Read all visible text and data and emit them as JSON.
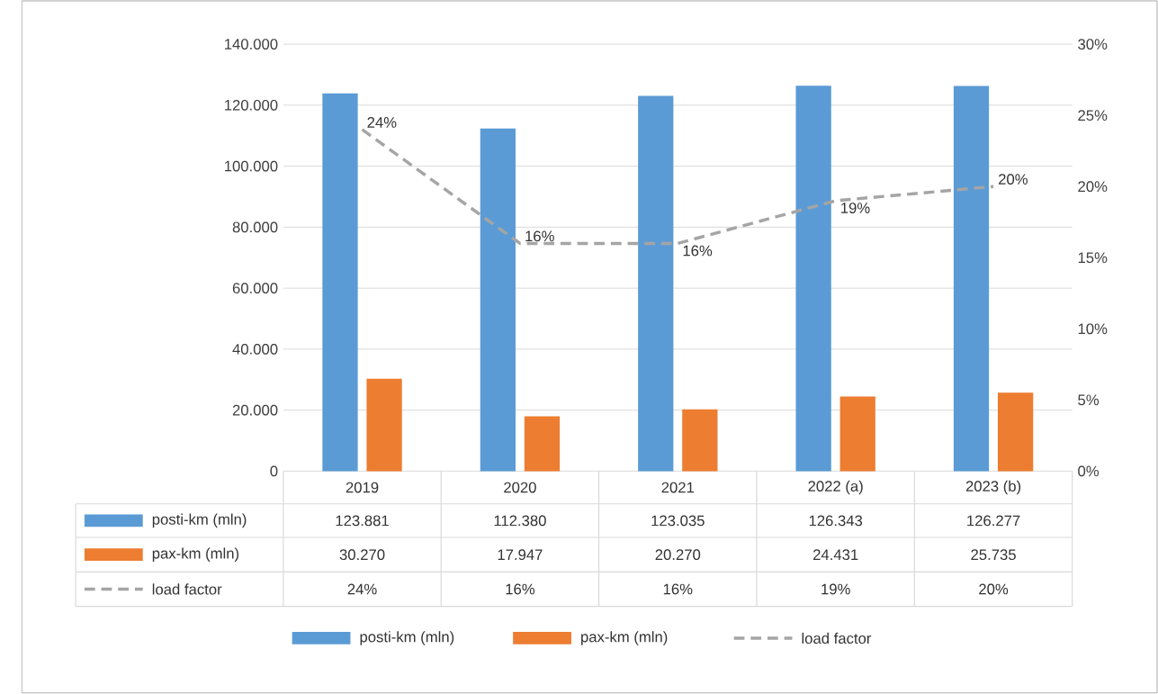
{
  "chart_data": {
    "type": "bar",
    "categories": [
      "2019",
      "2020",
      "2021",
      "2022 (a)",
      "2023 (b)"
    ],
    "series": [
      {
        "name": "posti-km (mln)",
        "color": "#5b9bd5",
        "values": [
          123881,
          112380,
          123035,
          126343,
          126277
        ],
        "value_labels": [
          "123.881",
          "112.380",
          "123.035",
          "126.343",
          "126.277"
        ]
      },
      {
        "name": "pax-km (mln)",
        "color": "#ed7d31",
        "values": [
          30270,
          17947,
          20270,
          24431,
          25735
        ],
        "value_labels": [
          "30.270",
          "17.947",
          "20.270",
          "24.431",
          "25.735"
        ]
      },
      {
        "name": "load factor",
        "type": "line",
        "axis": "y2",
        "color": "#a5a5a5",
        "line_style": "dashed",
        "marker": "none",
        "values": [
          24,
          16,
          16,
          19,
          20
        ],
        "value_labels": [
          "24%",
          "16%",
          "16%",
          "19%",
          "20%"
        ]
      }
    ],
    "ylim": [
      0,
      140000
    ],
    "yticks": [
      0,
      {
        "value": 20000,
        "label": "20.000"
      },
      {
        "value": 40000,
        "label": "40.000"
      },
      {
        "value": 60000,
        "label": "60.000"
      },
      {
        "value": 80000,
        "label": "80.000"
      },
      {
        "value": 100000,
        "label": "100.000"
      },
      {
        "value": 120000,
        "label": "120.000"
      },
      {
        "value": 140000,
        "label": "140.000"
      }
    ],
    "y2lim": [
      0,
      30
    ],
    "y2ticks": [
      {
        "value": 0,
        "label": "0%"
      },
      {
        "value": 5,
        "label": "5%"
      },
      {
        "value": 10,
        "label": "10%"
      },
      {
        "value": 15,
        "label": "15%"
      },
      {
        "value": 20,
        "label": "20%"
      },
      {
        "value": 25,
        "label": "25%"
      },
      {
        "value": 30,
        "label": "30%"
      }
    ],
    "grid": "y",
    "legend": "bottom"
  }
}
